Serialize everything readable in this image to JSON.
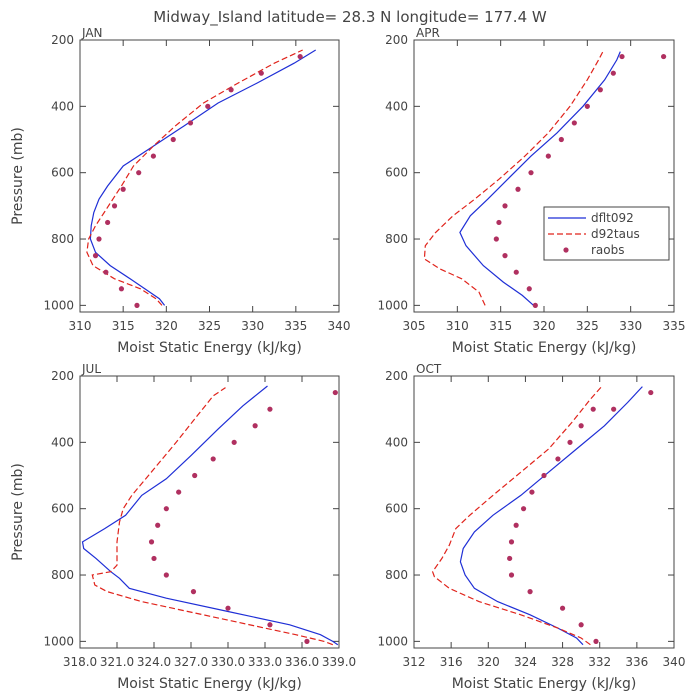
{
  "title": "Midway_Island  latitude= 28.3 N longitude= 177.4 W",
  "colors": {
    "dflt092": "#1f2fd6",
    "d92taus": "#e0231b",
    "raobs": "#b03060",
    "axis": "#444444"
  },
  "legend": {
    "entries": [
      "dflt092",
      "d92taus",
      "raobs"
    ],
    "panel": "APR",
    "placement": "center-right"
  },
  "chart_data": [
    {
      "type": "line",
      "panel": "JAN",
      "xlabel": "Moist Static Energy (kJ/kg)",
      "ylabel": "Pressure (mb)",
      "xlim": [
        310,
        340
      ],
      "ylim": [
        1020,
        200
      ],
      "x_ticks": [
        310,
        315,
        320,
        325,
        330,
        335,
        340
      ],
      "x_tick_labels": [
        "310",
        "315",
        "320",
        "325",
        "330",
        "335",
        "340"
      ],
      "y_ticks": [
        200,
        400,
        600,
        800,
        1000
      ],
      "y_tick_labels": [
        "200",
        "400",
        "600",
        "800",
        "1000"
      ],
      "series": [
        {
          "name": "dflt092",
          "style": "solid",
          "points": [
            [
              319.8,
              1000
            ],
            [
              319.2,
              980
            ],
            [
              317.5,
              950
            ],
            [
              315.8,
              920
            ],
            [
              313.5,
              880
            ],
            [
              311.8,
              840
            ],
            [
              311.2,
              800
            ],
            [
              311.3,
              760
            ],
            [
              311.6,
              720
            ],
            [
              312.2,
              680
            ],
            [
              313.2,
              640
            ],
            [
              315.0,
              580
            ],
            [
              318.5,
              520
            ],
            [
              322.0,
              460
            ],
            [
              326.0,
              390
            ],
            [
              330.5,
              330
            ],
            [
              334.8,
              270
            ],
            [
              337.3,
              230
            ]
          ]
        },
        {
          "name": "d92taus",
          "style": "dashed",
          "points": [
            [
              319.5,
              1000
            ],
            [
              318.8,
              980
            ],
            [
              317.0,
              950
            ],
            [
              314.0,
              920
            ],
            [
              311.5,
              880
            ],
            [
              310.8,
              840
            ],
            [
              311.0,
              800
            ],
            [
              311.8,
              760
            ],
            [
              312.8,
              720
            ],
            [
              313.8,
              680
            ],
            [
              314.8,
              640
            ],
            [
              316.2,
              580
            ],
            [
              318.5,
              520
            ],
            [
              321.0,
              460
            ],
            [
              324.3,
              390
            ],
            [
              328.3,
              330
            ],
            [
              332.5,
              270
            ],
            [
              335.8,
              230
            ]
          ]
        },
        {
          "name": "raobs",
          "style": "markers",
          "points": [
            [
              316.6,
              1000
            ],
            [
              314.8,
              950
            ],
            [
              313.0,
              900
            ],
            [
              311.8,
              850
            ],
            [
              312.2,
              800
            ],
            [
              313.2,
              750
            ],
            [
              314.0,
              700
            ],
            [
              315.0,
              650
            ],
            [
              316.8,
              600
            ],
            [
              318.5,
              550
            ],
            [
              320.8,
              500
            ],
            [
              322.8,
              450
            ],
            [
              324.8,
              400
            ],
            [
              327.5,
              350
            ],
            [
              331.0,
              300
            ],
            [
              335.5,
              250
            ]
          ]
        }
      ]
    },
    {
      "type": "line",
      "panel": "APR",
      "xlabel": "Moist Static Energy (kJ/kg)",
      "ylabel": "",
      "xlim": [
        305,
        335
      ],
      "ylim": [
        1020,
        200
      ],
      "x_ticks": [
        305,
        310,
        315,
        320,
        325,
        330,
        335
      ],
      "x_tick_labels": [
        "305",
        "310",
        "315",
        "320",
        "325",
        "330",
        "335"
      ],
      "y_ticks": [
        200,
        400,
        600,
        800,
        1000
      ],
      "y_tick_labels": [
        "200",
        "400",
        "600",
        "800",
        "1000"
      ],
      "series": [
        {
          "name": "dflt092",
          "style": "solid",
          "points": [
            [
              318.8,
              1000
            ],
            [
              317.5,
              970
            ],
            [
              315.3,
              930
            ],
            [
              313.0,
              880
            ],
            [
              311.0,
              820
            ],
            [
              310.3,
              780
            ],
            [
              311.5,
              730
            ],
            [
              313.5,
              680
            ],
            [
              315.8,
              620
            ],
            [
              318.5,
              550
            ],
            [
              321.5,
              480
            ],
            [
              324.5,
              400
            ],
            [
              327.0,
              320
            ],
            [
              328.4,
              260
            ],
            [
              328.8,
              235
            ]
          ]
        },
        {
          "name": "d92taus",
          "style": "dashed",
          "points": [
            [
              313.2,
              1000
            ],
            [
              312.5,
              960
            ],
            [
              310.5,
              920
            ],
            [
              308.0,
              890
            ],
            [
              306.2,
              860
            ],
            [
              306.3,
              820
            ],
            [
              307.5,
              780
            ],
            [
              309.5,
              730
            ],
            [
              312.0,
              680
            ],
            [
              314.8,
              620
            ],
            [
              317.8,
              550
            ],
            [
              320.5,
              480
            ],
            [
              323.0,
              400
            ],
            [
              325.0,
              320
            ],
            [
              326.3,
              260
            ],
            [
              326.8,
              235
            ]
          ]
        },
        {
          "name": "raobs",
          "style": "markers",
          "points": [
            [
              319.0,
              1000
            ],
            [
              318.3,
              950
            ],
            [
              316.8,
              900
            ],
            [
              315.5,
              850
            ],
            [
              314.5,
              800
            ],
            [
              314.8,
              750
            ],
            [
              315.5,
              700
            ],
            [
              317.0,
              650
            ],
            [
              318.5,
              600
            ],
            [
              320.5,
              550
            ],
            [
              322.0,
              500
            ],
            [
              323.5,
              450
            ],
            [
              325.0,
              400
            ],
            [
              326.5,
              350
            ],
            [
              328.0,
              300
            ],
            [
              329.0,
              250
            ],
            [
              333.8,
              250
            ]
          ]
        }
      ]
    },
    {
      "type": "line",
      "panel": "JUL",
      "xlabel": "Moist Static Energy (kJ/kg)",
      "ylabel": "Pressure (mb)",
      "xlim": [
        318.0,
        339.0
      ],
      "ylim": [
        1020,
        200
      ],
      "x_ticks": [
        318.0,
        321.0,
        324.0,
        327.0,
        330.0,
        333.0,
        336.0,
        339.0
      ],
      "x_tick_labels": [
        "318.0",
        "321.0",
        "324.0",
        "327.0",
        "330.0",
        "333.0",
        "336.0",
        "339.0"
      ],
      "y_ticks": [
        200,
        400,
        600,
        800,
        1000
      ],
      "y_tick_labels": [
        "200",
        "400",
        "600",
        "800",
        "1000"
      ],
      "series": [
        {
          "name": "dflt092",
          "style": "solid",
          "points": [
            [
              338.9,
              1010
            ],
            [
              338.5,
              1000
            ],
            [
              337.5,
              980
            ],
            [
              335.0,
              950
            ],
            [
              330.0,
              910
            ],
            [
              325.0,
              870
            ],
            [
              322.0,
              840
            ],
            [
              321.2,
              810
            ],
            [
              320.5,
              790
            ],
            [
              319.3,
              750
            ],
            [
              318.3,
              720
            ],
            [
              318.2,
              700
            ],
            [
              320.0,
              660
            ],
            [
              321.7,
              620
            ],
            [
              323.0,
              560
            ],
            [
              325.0,
              510
            ],
            [
              327.0,
              440
            ],
            [
              329.2,
              360
            ],
            [
              331.2,
              290
            ],
            [
              333.2,
              230
            ]
          ]
        },
        {
          "name": "d92taus",
          "style": "dashed",
          "points": [
            [
              338.5,
              1010
            ],
            [
              337.8,
              1000
            ],
            [
              335.5,
              980
            ],
            [
              333.0,
              960
            ],
            [
              328.0,
              920
            ],
            [
              323.0,
              880
            ],
            [
              320.2,
              850
            ],
            [
              319.2,
              830
            ],
            [
              319.0,
              800
            ],
            [
              320.5,
              790
            ],
            [
              321.0,
              770
            ],
            [
              321.0,
              700
            ],
            [
              321.2,
              640
            ],
            [
              321.5,
              600
            ],
            [
              322.2,
              560
            ],
            [
              324.0,
              480
            ],
            [
              325.8,
              400
            ],
            [
              327.5,
              320
            ],
            [
              328.8,
              260
            ],
            [
              329.8,
              235
            ]
          ]
        },
        {
          "name": "raobs",
          "style": "markers",
          "points": [
            [
              336.4,
              1000
            ],
            [
              333.4,
              950
            ],
            [
              330.0,
              900
            ],
            [
              327.2,
              850
            ],
            [
              325.0,
              800
            ],
            [
              324.0,
              750
            ],
            [
              323.8,
              700
            ],
            [
              324.3,
              650
            ],
            [
              325.0,
              600
            ],
            [
              326.0,
              550
            ],
            [
              327.3,
              500
            ],
            [
              328.8,
              450
            ],
            [
              330.5,
              400
            ],
            [
              332.2,
              350
            ],
            [
              333.4,
              300
            ],
            [
              338.7,
              250
            ]
          ]
        }
      ]
    },
    {
      "type": "line",
      "panel": "OCT",
      "xlabel": "Moist Static Energy (kJ/kg)",
      "ylabel": "",
      "xlim": [
        312,
        340
      ],
      "ylim": [
        1020,
        200
      ],
      "x_ticks": [
        312,
        316,
        320,
        324,
        328,
        332,
        336,
        340
      ],
      "x_tick_labels": [
        "312",
        "316",
        "320",
        "324",
        "328",
        "332",
        "336",
        "340"
      ],
      "y_ticks": [
        200,
        400,
        600,
        800,
        1000
      ],
      "y_tick_labels": [
        "200",
        "400",
        "600",
        "800",
        "1000"
      ],
      "series": [
        {
          "name": "dflt092",
          "style": "solid",
          "points": [
            [
              330.2,
              1010
            ],
            [
              329.5,
              990
            ],
            [
              327.5,
              960
            ],
            [
              324.5,
              920
            ],
            [
              321.0,
              880
            ],
            [
              318.5,
              840
            ],
            [
              317.5,
              800
            ],
            [
              317.0,
              760
            ],
            [
              317.3,
              720
            ],
            [
              318.5,
              670
            ],
            [
              320.5,
              620
            ],
            [
              323.5,
              560
            ],
            [
              326.5,
              490
            ],
            [
              329.5,
              420
            ],
            [
              332.5,
              350
            ],
            [
              335.0,
              280
            ],
            [
              336.6,
              232
            ]
          ]
        },
        {
          "name": "d92taus",
          "style": "dashed",
          "points": [
            [
              331.0,
              1010
            ],
            [
              330.0,
              990
            ],
            [
              327.5,
              960
            ],
            [
              323.5,
              920
            ],
            [
              319.0,
              880
            ],
            [
              315.8,
              840
            ],
            [
              314.2,
              805
            ],
            [
              314.0,
              790
            ],
            [
              315.0,
              750
            ],
            [
              315.8,
              710
            ],
            [
              316.5,
              660
            ],
            [
              318.0,
              620
            ],
            [
              320.5,
              560
            ],
            [
              323.5,
              490
            ],
            [
              326.5,
              420
            ],
            [
              329.0,
              340
            ],
            [
              331.0,
              270
            ],
            [
              332.2,
              232
            ]
          ]
        },
        {
          "name": "raobs",
          "style": "markers",
          "points": [
            [
              331.6,
              1000
            ],
            [
              330.0,
              950
            ],
            [
              328.0,
              900
            ],
            [
              324.5,
              850
            ],
            [
              322.5,
              800
            ],
            [
              322.3,
              750
            ],
            [
              322.5,
              700
            ],
            [
              323.0,
              650
            ],
            [
              323.8,
              600
            ],
            [
              324.7,
              550
            ],
            [
              326.0,
              500
            ],
            [
              327.5,
              450
            ],
            [
              328.8,
              400
            ],
            [
              330.0,
              350
            ],
            [
              331.3,
              300
            ],
            [
              333.5,
              300
            ],
            [
              337.5,
              250
            ]
          ]
        }
      ]
    }
  ]
}
